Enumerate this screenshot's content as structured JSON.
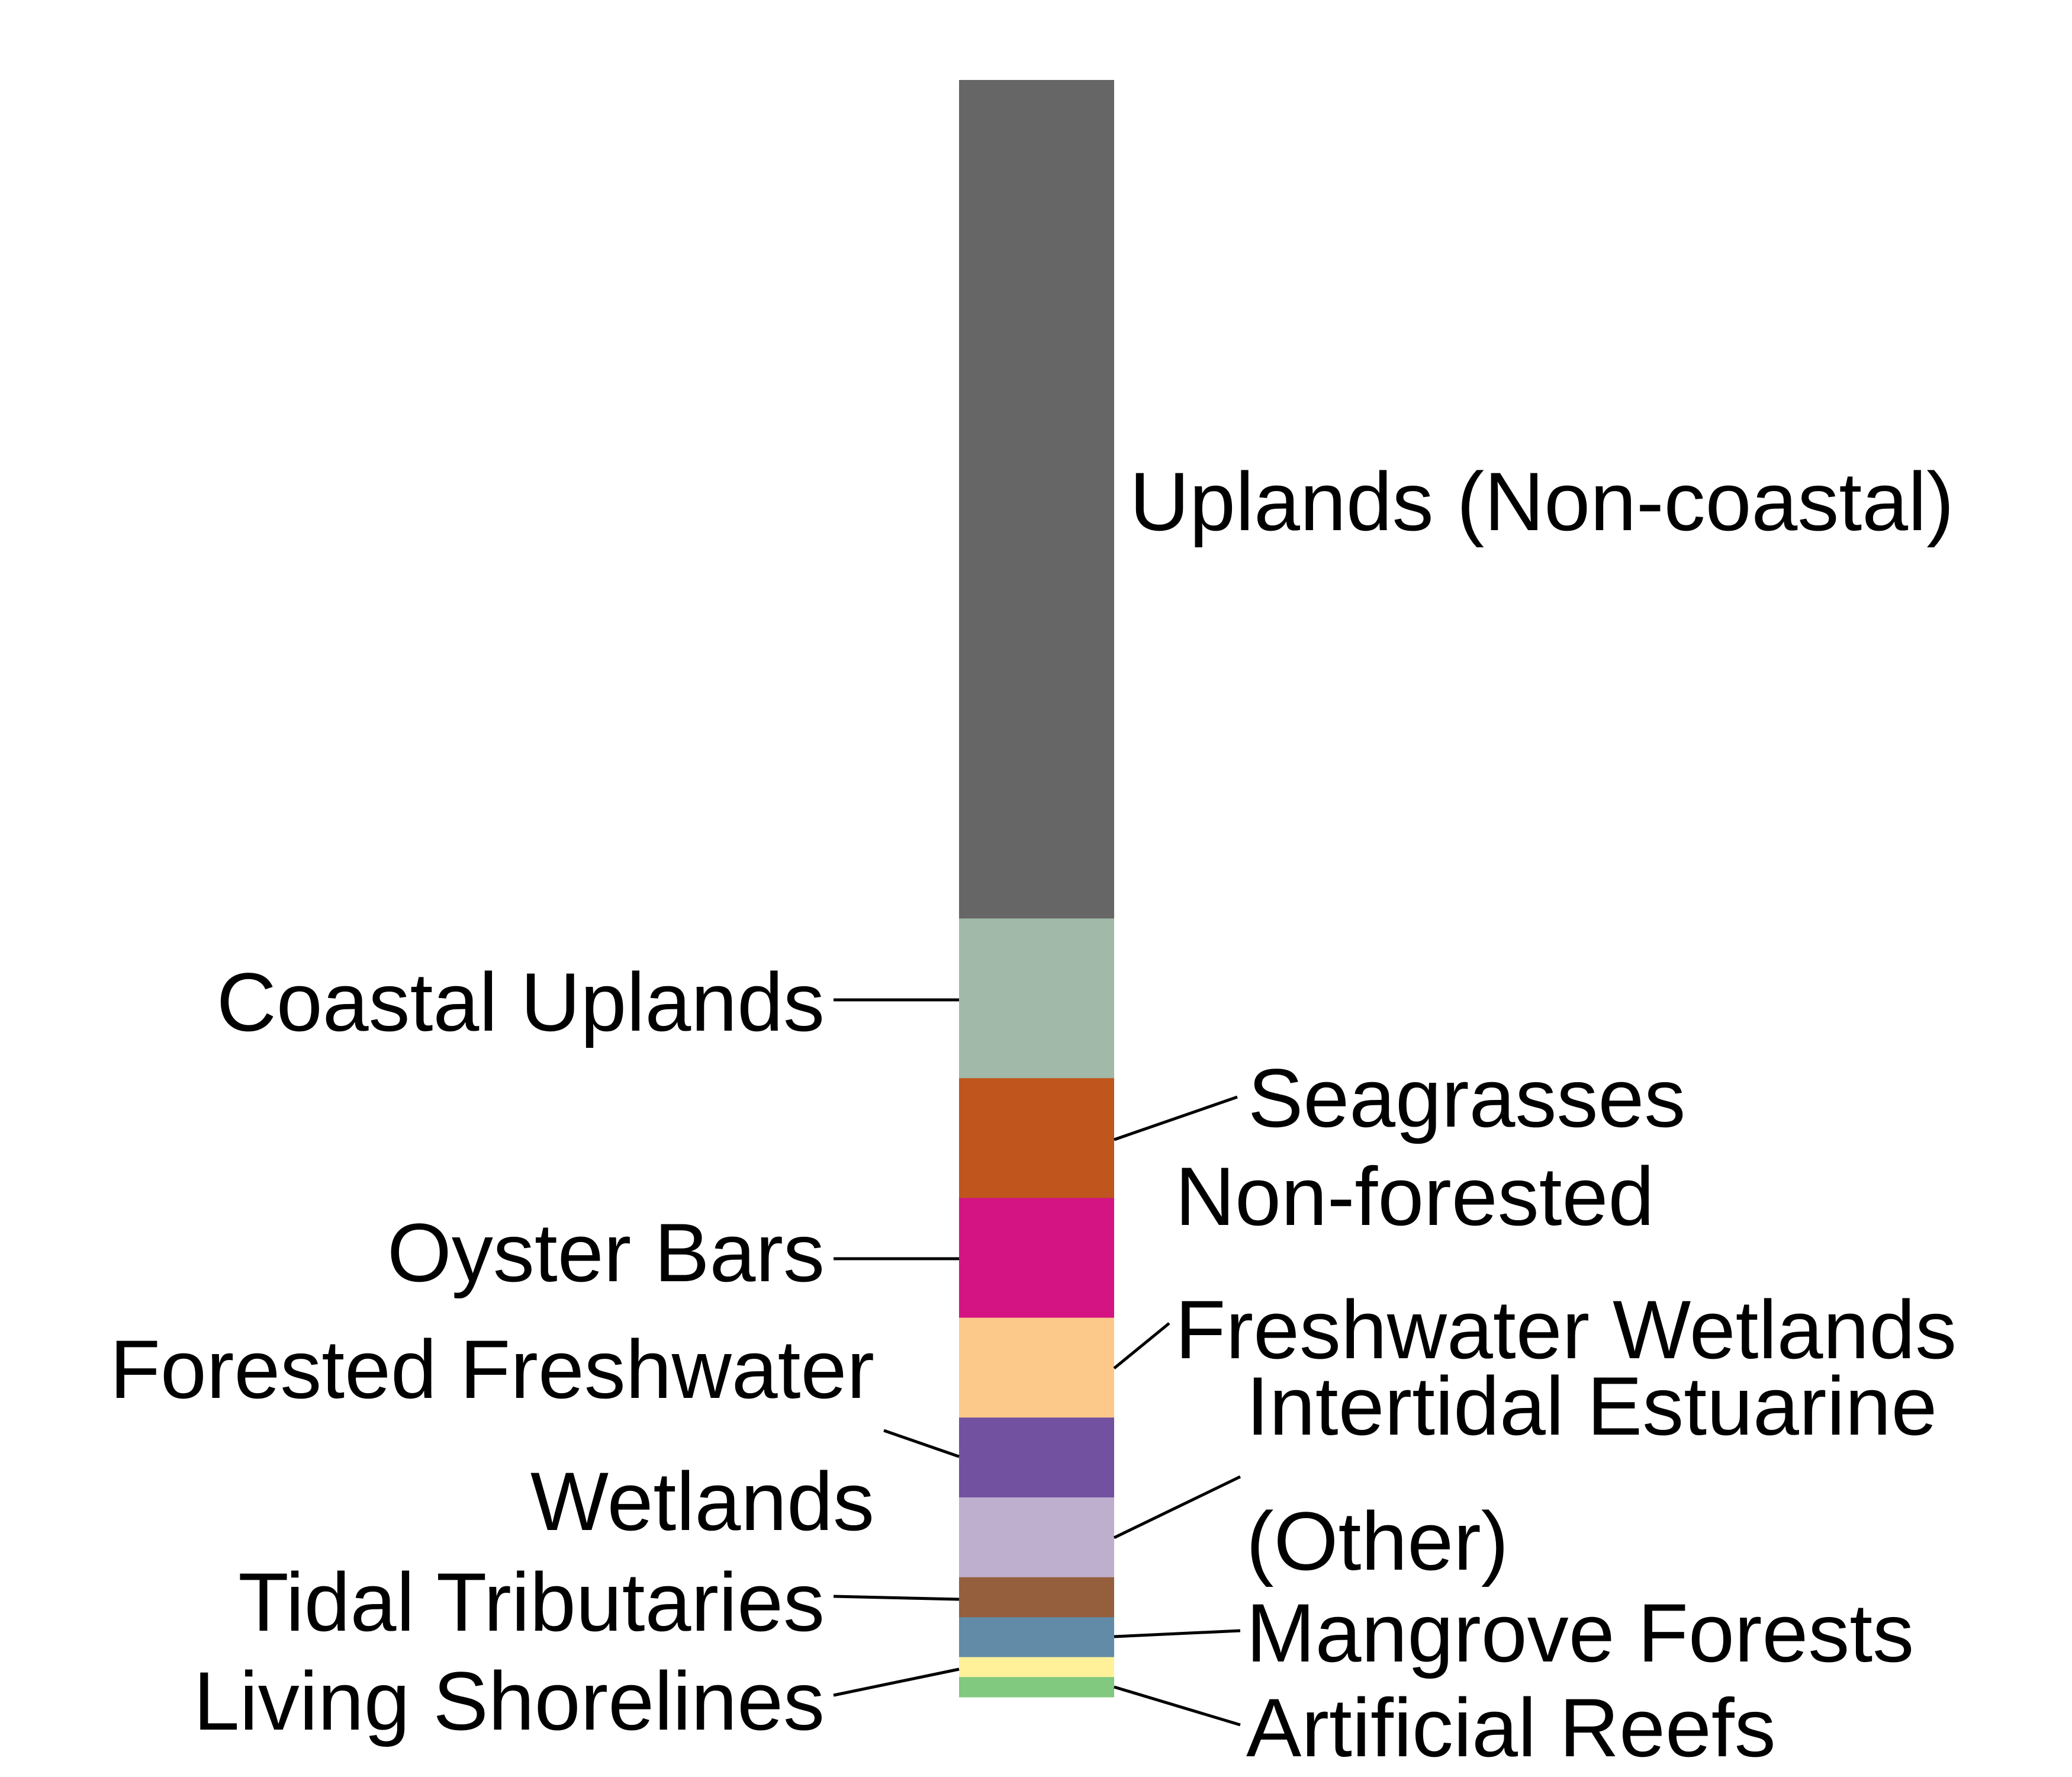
{
  "chart_data": {
    "type": "bar",
    "orientation": "vertical-stacked",
    "series": [
      {
        "name": "Uplands (Non-coastal)",
        "value": 42.0,
        "color": "#666666",
        "label_lines": [
          "Uplands (Non-coastal)"
        ]
      },
      {
        "name": "Coastal Uplands",
        "value": 8.0,
        "color": "#a0b9a8",
        "label_lines": [
          "Coastal Uplands"
        ]
      },
      {
        "name": "Seagrasses",
        "value": 6.0,
        "color": "#c0561d",
        "label_lines": [
          "Seagrasses"
        ]
      },
      {
        "name": "Oyster Bars",
        "value": 6.0,
        "color": "#d41482",
        "label_lines": [
          "Oyster Bars"
        ]
      },
      {
        "name": "Non-forested Freshwater Wetlands",
        "value": 5.0,
        "color": "#fdc98a",
        "label_lines": [
          "Non-forested",
          "Freshwater Wetlands"
        ]
      },
      {
        "name": "Forested Freshwater Wetlands",
        "value": 4.0,
        "color": "#7251a1",
        "label_lines": [
          "Forested Freshwater",
          "Wetlands"
        ]
      },
      {
        "name": "Intertidal Estuarine (Other)",
        "value": 4.0,
        "color": "#bfafcf",
        "label_lines": [
          "Intertidal Estuarine",
          "(Other)"
        ]
      },
      {
        "name": "Tidal Tributaries",
        "value": 2.0,
        "color": "#955e3c",
        "label_lines": [
          "Tidal Tributaries"
        ]
      },
      {
        "name": "Mangrove Forests",
        "value": 2.0,
        "color": "#628ba8",
        "label_lines": [
          "Mangrove Forests"
        ]
      },
      {
        "name": "Living Shorelines",
        "value": 1.0,
        "color": "#fff19a",
        "label_lines": [
          "Living Shorelines"
        ]
      },
      {
        "name": "Artificial Reefs",
        "value": 1.0,
        "color": "#80c97e",
        "label_lines": [
          "Artificial Reefs"
        ]
      }
    ]
  }
}
